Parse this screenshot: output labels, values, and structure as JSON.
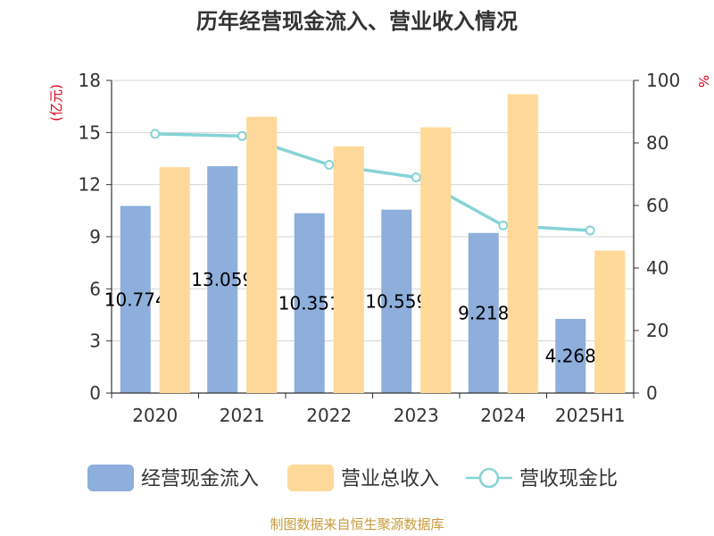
{
  "title": "历年经营现金流入、营业收入情况",
  "source_text": "制图数据来自恒生聚源数据库",
  "colors": {
    "cash_inflow": "#8eaedb",
    "revenue": "#ffd99a",
    "ratio": "#86d3d6",
    "unit": "#d9001b",
    "source": "#c89b3c"
  },
  "chart_data": {
    "type": "bar",
    "title": "历年经营现金流入、营业收入情况",
    "categories": [
      "2020",
      "2021",
      "2022",
      "2023",
      "2024",
      "2025H1"
    ],
    "y_left": {
      "label": "(亿元)",
      "ylim": [
        0,
        18
      ],
      "ticks": [
        "0",
        "3",
        "6",
        "9",
        "12",
        "15",
        "18"
      ]
    },
    "y_right": {
      "label": "%",
      "ylim": [
        0,
        100
      ],
      "ticks": [
        "0",
        "20",
        "40",
        "60",
        "80",
        "100"
      ]
    },
    "grid": true,
    "legend_position": "bottom",
    "series": [
      {
        "name": "经营现金流入",
        "type": "bar",
        "axis": "left",
        "color": "#8eaedb",
        "values": [
          10.774,
          13.059,
          10.351,
          10.559,
          9.218,
          4.268
        ],
        "labels": [
          "10.774",
          "13.059",
          "10.351",
          "10.559",
          "9.218",
          "4.268"
        ]
      },
      {
        "name": "营业总收入",
        "type": "bar",
        "axis": "left",
        "color": "#ffd99a",
        "values": [
          13.0,
          15.9,
          14.2,
          15.3,
          17.2,
          8.2
        ]
      },
      {
        "name": "营收现金比",
        "type": "line",
        "axis": "right",
        "color": "#86d3d6",
        "values": [
          82.9,
          82.2,
          73.0,
          69.0,
          53.6,
          52.0
        ]
      }
    ]
  }
}
